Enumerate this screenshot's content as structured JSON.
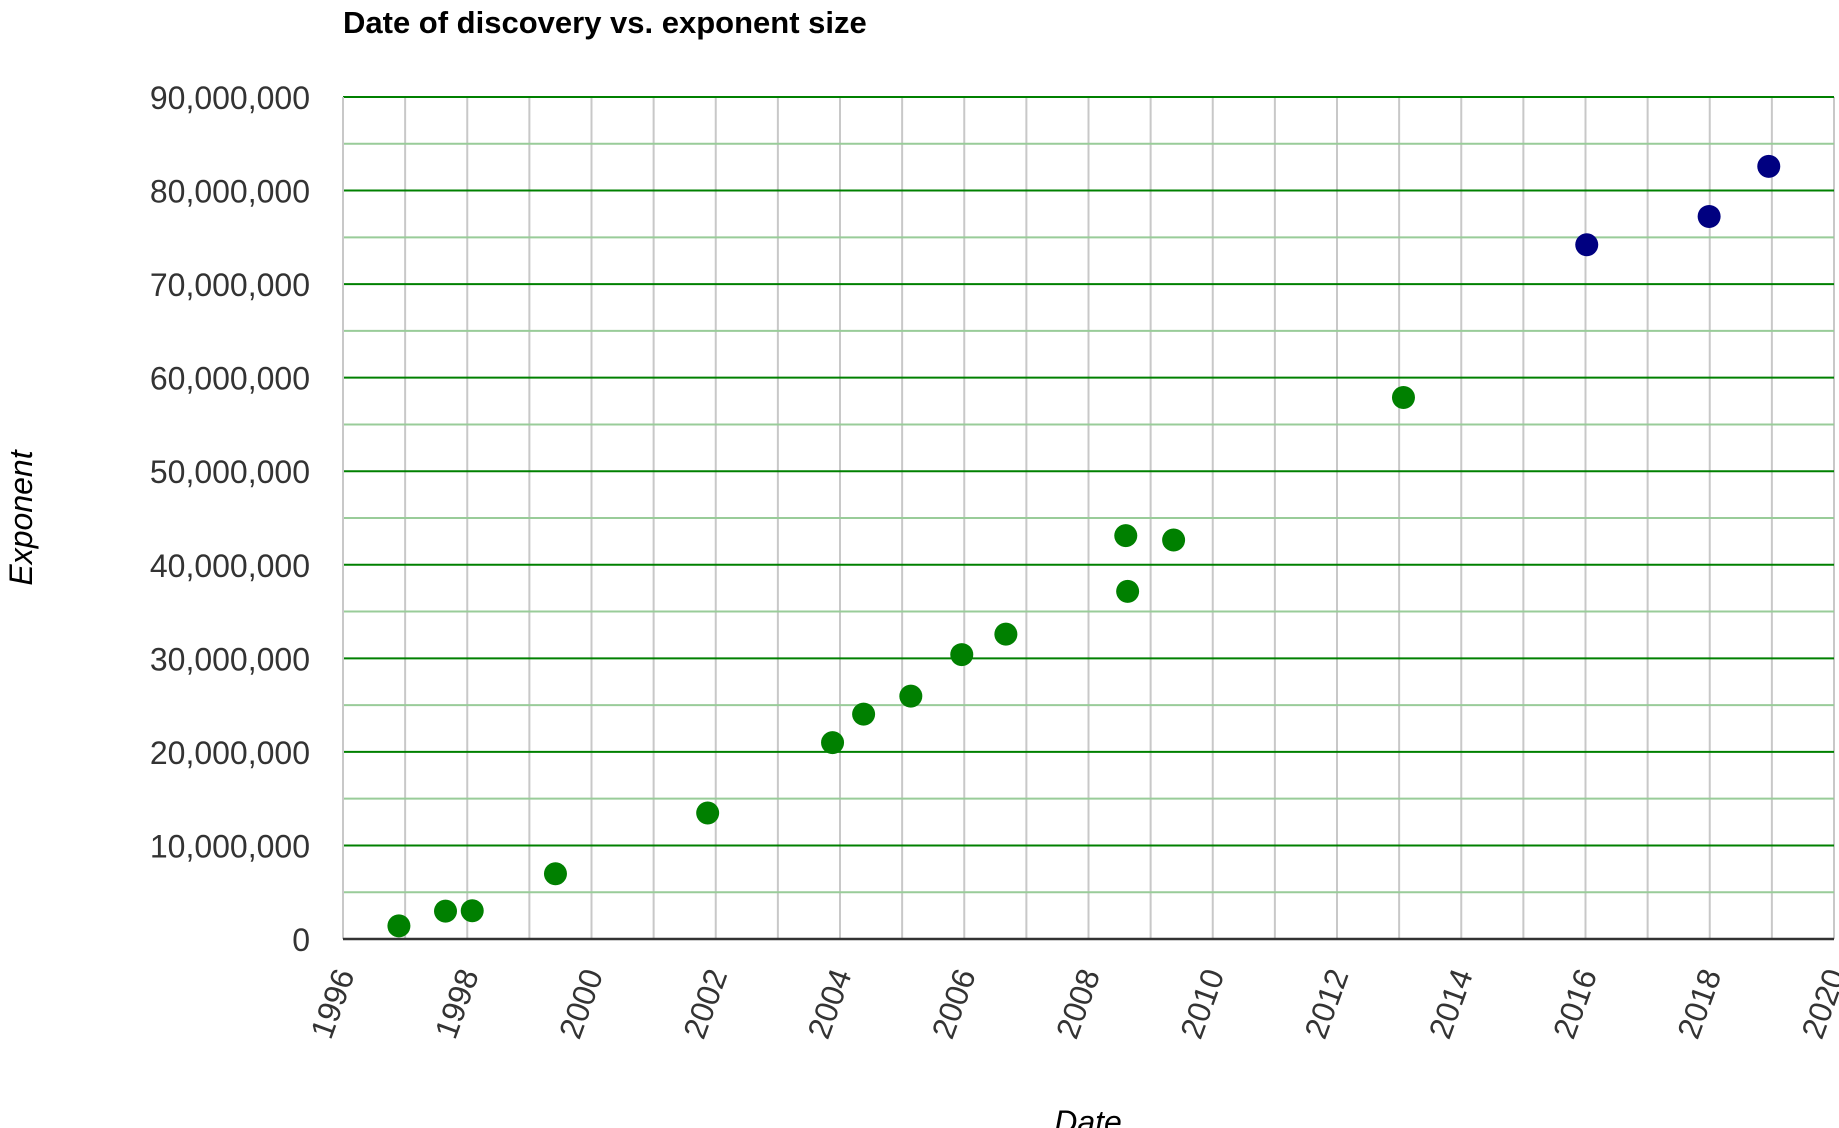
{
  "chart_data": {
    "type": "scatter",
    "title": "Date of discovery vs. exponent size",
    "xlabel": "Date",
    "ylabel": "Exponent",
    "xlim": [
      1996,
      2020
    ],
    "ylim": [
      0,
      90000000
    ],
    "xticks": [
      "1996",
      "1998",
      "2000",
      "2002",
      "2004",
      "2006",
      "2008",
      "2010",
      "2012",
      "2014",
      "2016",
      "2018",
      "2020"
    ],
    "yticks": [
      "0",
      "10,000,000",
      "20,000,000",
      "30,000,000",
      "40,000,000",
      "50,000,000",
      "60,000,000",
      "70,000,000",
      "80,000,000",
      "90,000,000"
    ],
    "grid": true,
    "legend": "none",
    "series": [
      {
        "color": "#008000",
        "points": [
          {
            "x": 1996.9,
            "y": 1398269
          },
          {
            "x": 1997.65,
            "y": 2976221
          },
          {
            "x": 1998.08,
            "y": 3021377
          },
          {
            "x": 1999.42,
            "y": 6972593
          },
          {
            "x": 2001.87,
            "y": 13466917
          },
          {
            "x": 2003.88,
            "y": 20996011
          },
          {
            "x": 2004.38,
            "y": 24036583
          },
          {
            "x": 2005.14,
            "y": 25964951
          },
          {
            "x": 2005.96,
            "y": 30402457
          },
          {
            "x": 2006.67,
            "y": 32582657
          },
          {
            "x": 2008.6,
            "y": 43112609
          },
          {
            "x": 2008.63,
            "y": 37156667
          },
          {
            "x": 2009.37,
            "y": 42643801
          },
          {
            "x": 2013.07,
            "y": 57885161
          }
        ]
      },
      {
        "color": "#000080",
        "points": [
          {
            "x": 2016.02,
            "y": 74207281
          },
          {
            "x": 2017.99,
            "y": 77232917
          },
          {
            "x": 2018.95,
            "y": 82589933
          }
        ]
      }
    ]
  },
  "colors": {
    "major_grid": "#008000",
    "minor_grid": "#99cc99",
    "vertical_grid": "#c8c8c8",
    "axis_line": "#333333"
  }
}
